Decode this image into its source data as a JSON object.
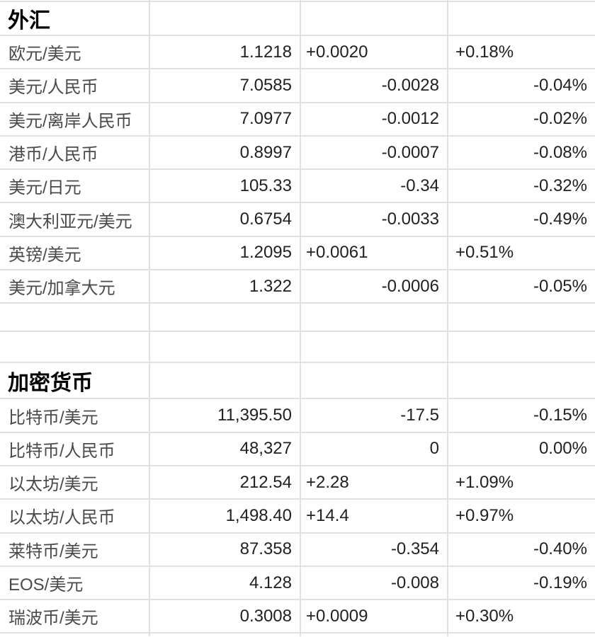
{
  "sections": [
    {
      "title": "外汇",
      "rows": [
        {
          "pair": "欧元/美元",
          "price": "1.1218",
          "change": "+0.0020",
          "change_pct": "+0.18%"
        },
        {
          "pair": "美元/人民币",
          "price": "7.0585",
          "change": "-0.0028",
          "change_pct": "-0.04%"
        },
        {
          "pair": "美元/离岸人民币",
          "price": "7.0977",
          "change": "-0.0012",
          "change_pct": "-0.02%"
        },
        {
          "pair": "港币/人民币",
          "price": "0.8997",
          "change": "-0.0007",
          "change_pct": "-0.08%"
        },
        {
          "pair": "美元/日元",
          "price": "105.33",
          "change": "-0.34",
          "change_pct": "-0.32%"
        },
        {
          "pair": "澳大利亚元/美元",
          "price": "0.6754",
          "change": "-0.0033",
          "change_pct": "-0.49%"
        },
        {
          "pair": "英镑/美元",
          "price": "1.2095",
          "change": "+0.0061",
          "change_pct": "+0.51%"
        },
        {
          "pair": "美元/加拿大元",
          "price": "1.322",
          "change": "-0.0006",
          "change_pct": "-0.05%"
        }
      ]
    },
    {
      "title": "加密货币",
      "rows": [
        {
          "pair": "比特币/美元",
          "price": "11,395.50",
          "change": "-17.5",
          "change_pct": "-0.15%"
        },
        {
          "pair": "比特币/人民币",
          "price": "48,327",
          "change": "0",
          "change_pct": "0.00%"
        },
        {
          "pair": "以太坊/美元",
          "price": "212.54",
          "change": "+2.28",
          "change_pct": "+1.09%"
        },
        {
          "pair": "以太坊/人民币",
          "price": "1,498.40",
          "change": "+14.4",
          "change_pct": "+0.97%"
        },
        {
          "pair": "莱特币/美元",
          "price": "87.358",
          "change": "-0.354",
          "change_pct": "-0.40%"
        },
        {
          "pair": "EOS/美元",
          "price": "4.128",
          "change": "-0.008",
          "change_pct": "-0.19%"
        },
        {
          "pair": "瑞波币/美元",
          "price": "0.3008",
          "change": "+0.0009",
          "change_pct": "+0.30%"
        }
      ]
    }
  ],
  "colors": {
    "grid_line": "#e0e0e0",
    "header_text": "#000000",
    "label_text": "#4a4a4a",
    "value_text": "#212121",
    "background": "#ffffff"
  }
}
